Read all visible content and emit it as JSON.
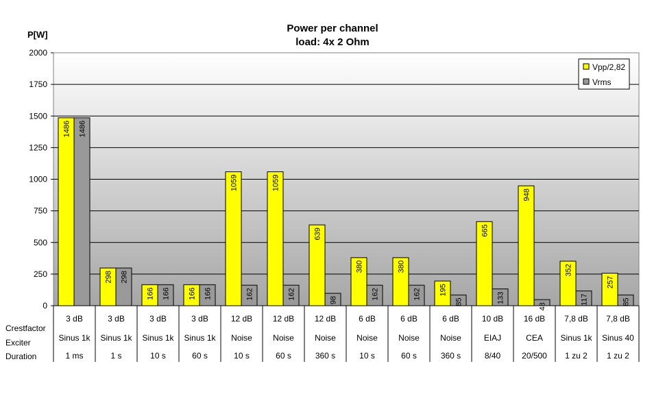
{
  "chart_data": {
    "type": "bar",
    "title": "Power per channel",
    "subtitle": "load:  4x 2 Ohm",
    "ylabel": "P[W]",
    "ylim": [
      0,
      2000
    ],
    "yticks": [
      0,
      250,
      500,
      750,
      1000,
      1250,
      1500,
      1750,
      2000
    ],
    "grid": true,
    "legend_position": "top-right",
    "row_labels": [
      "Crestfactor",
      "Exciter",
      "Duration"
    ],
    "categories": [
      {
        "crestfactor": "3 dB",
        "exciter": "Sinus 1k",
        "duration": "1 ms"
      },
      {
        "crestfactor": "3 dB",
        "exciter": "Sinus 1k",
        "duration": "1 s"
      },
      {
        "crestfactor": "3 dB",
        "exciter": "Sinus 1k",
        "duration": "10 s"
      },
      {
        "crestfactor": "3 dB",
        "exciter": "Sinus 1k",
        "duration": "60 s"
      },
      {
        "crestfactor": "12 dB",
        "exciter": "Noise",
        "duration": "10 s"
      },
      {
        "crestfactor": "12 dB",
        "exciter": "Noise",
        "duration": "60 s"
      },
      {
        "crestfactor": "12 dB",
        "exciter": "Noise",
        "duration": "360 s"
      },
      {
        "crestfactor": "6 dB",
        "exciter": "Noise",
        "duration": "10 s"
      },
      {
        "crestfactor": "6 dB",
        "exciter": "Noise",
        "duration": "60 s"
      },
      {
        "crestfactor": "6 dB",
        "exciter": "Noise",
        "duration": "360 s"
      },
      {
        "crestfactor": "10 dB",
        "exciter": "EIAJ",
        "duration": "8/40"
      },
      {
        "crestfactor": "16 dB",
        "exciter": "CEA",
        "duration": "20/500"
      },
      {
        "crestfactor": "7,8 dB",
        "exciter": "Sinus 1k",
        "duration": "1 zu 2"
      },
      {
        "crestfactor": "7,8 dB",
        "exciter": "Sinus 40",
        "duration": "1 zu 2"
      }
    ],
    "series": [
      {
        "name": "Vpp/2,82",
        "color": "#ffff00",
        "values": [
          1486,
          298,
          166,
          166,
          1059,
          1059,
          639,
          380,
          380,
          195,
          665,
          948,
          352,
          257
        ]
      },
      {
        "name": "Vrms",
        "color": "#999999",
        "values": [
          1486,
          298,
          166,
          166,
          162,
          162,
          98,
          162,
          162,
          85,
          133,
          48,
          117,
          85
        ]
      }
    ]
  }
}
